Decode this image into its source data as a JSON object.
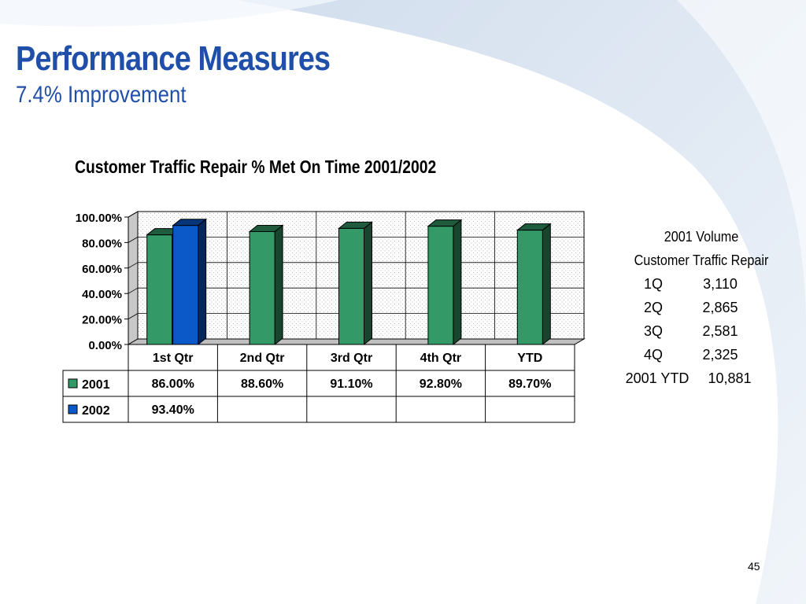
{
  "slide": {
    "title": "Performance Measures",
    "subtitle": "7.4% Improvement",
    "page_number": "45",
    "colors": {
      "title": "#1f4fa8",
      "bar_2001": "#339966",
      "bar_2002": "#0b58c9",
      "swirl": "#dbe6f2"
    }
  },
  "chart_data": {
    "type": "bar",
    "title": "Customer Traffic Repair % Met On Time 2001/2002",
    "categories": [
      "1st Qtr",
      "2nd Qtr",
      "3rd Qtr",
      "4th Qtr",
      "YTD"
    ],
    "series": [
      {
        "name": "2001",
        "values": [
          86.0,
          88.6,
          91.1,
          92.8,
          89.7
        ],
        "labels": [
          "86.00%",
          "88.60%",
          "91.10%",
          "92.80%",
          "89.70%"
        ],
        "color": "#339966"
      },
      {
        "name": "2002",
        "values": [
          93.4,
          null,
          null,
          null,
          null
        ],
        "labels": [
          "93.40%",
          "",
          "",
          "",
          ""
        ],
        "color": "#0b58c9"
      }
    ],
    "y_ticks": [
      "0.00%",
      "20.00%",
      "40.00%",
      "60.00%",
      "80.00%",
      "100.00%"
    ],
    "ylim": [
      0,
      100
    ],
    "grid": true,
    "data_table": true,
    "style": "3d-clustered-column"
  },
  "volume": {
    "title": "2001 Volume",
    "subtitle": "Customer Traffic Repair",
    "rows": [
      {
        "quarter": "1Q",
        "value": "3,110"
      },
      {
        "quarter": "2Q",
        "value": "2,865"
      },
      {
        "quarter": "3Q",
        "value": "2,581"
      },
      {
        "quarter": "4Q",
        "value": "2,325"
      }
    ],
    "total_label": "2001 YTD",
    "total_value": "10,881"
  }
}
